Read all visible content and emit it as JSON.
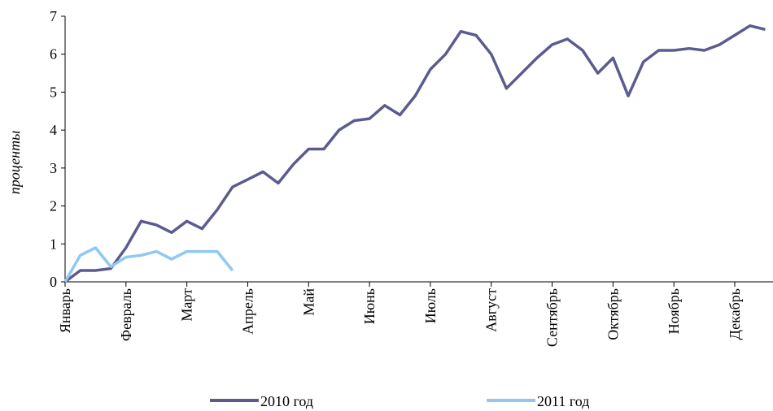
{
  "chart_data": {
    "type": "line",
    "y_label": "проценты",
    "categories": [
      "Январь",
      null,
      null,
      null,
      "Февраль",
      null,
      null,
      null,
      "Март",
      null,
      null,
      null,
      "Апрель",
      null,
      null,
      null,
      "Май",
      null,
      null,
      null,
      "Июнь",
      null,
      null,
      null,
      "Июль",
      null,
      null,
      null,
      "Август",
      null,
      null,
      null,
      "Сентябрь",
      null,
      null,
      null,
      "Октябрь",
      null,
      null,
      null,
      "Ноябрь",
      null,
      null,
      null,
      "Декабрь",
      null,
      null
    ],
    "series": [
      {
        "name": "2010 год",
        "color": "#5b5b8f",
        "values": [
          0,
          0.3,
          0.3,
          0.35,
          0.9,
          1.6,
          1.5,
          1.3,
          1.6,
          1.4,
          1.9,
          2.5,
          2.7,
          2.9,
          2.6,
          3.1,
          3.5,
          3.5,
          4.0,
          4.25,
          4.3,
          4.65,
          4.4,
          4.9,
          5.6,
          6.0,
          6.6,
          6.5,
          6.0,
          5.1,
          5.5,
          5.9,
          6.25,
          6.4,
          6.1,
          5.5,
          5.9,
          4.9,
          5.8,
          6.1,
          6.1,
          6.15,
          6.1,
          6.25,
          6.5,
          6.75,
          6.65
        ]
      },
      {
        "name": "2011 год",
        "color": "#90c8f2",
        "values": [
          0,
          0.7,
          0.9,
          0.4,
          0.65,
          0.7,
          0.8,
          0.6,
          0.8,
          0.8,
          0.8,
          0.3,
          null,
          null,
          null,
          null,
          null,
          null,
          null,
          null,
          null,
          null,
          null,
          null,
          null,
          null,
          null,
          null,
          null,
          null,
          null,
          null,
          null,
          null,
          null,
          null,
          null,
          null,
          null,
          null,
          null,
          null,
          null,
          null,
          null,
          null,
          null
        ]
      }
    ],
    "ylim": [
      0,
      7
    ],
    "yticks": [
      0,
      1,
      2,
      3,
      4,
      5,
      6,
      7
    ]
  }
}
